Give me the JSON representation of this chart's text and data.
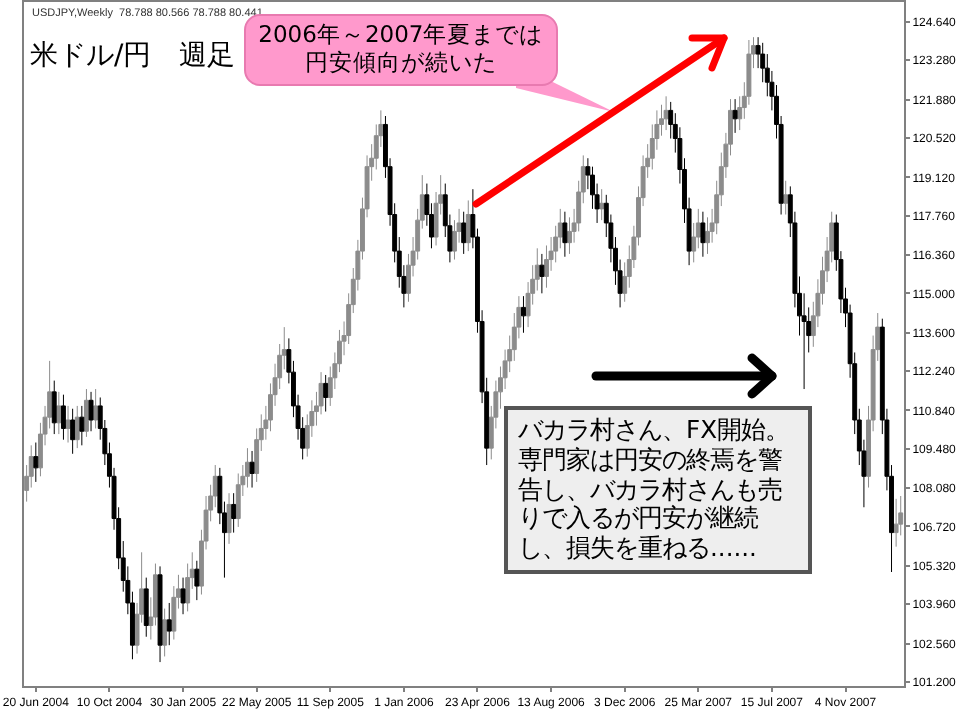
{
  "chart_data": {
    "type": "candlestick",
    "title": "米ドル/円　週足",
    "annotations": [
      "USDJPY,Weekly  78.788 80.566 78.788 80.441",
      "2006年～2007年夏までは円安傾向が続いた",
      "バカラ村さん、FX開始。専門家は円安の終焉を警告し、バカラ村さんも売りで入るが円安が継続し、損失を重ねる......"
    ],
    "colors": [
      "#8c8c8c",
      "#8c8c8c",
      "#000000",
      "#8c8c8c",
      "#8c8c8c",
      "#8c8c8c",
      "#000000",
      "#8c8c8c",
      "#000000",
      "#8c8c8c",
      "#000000",
      "#8c8c8c",
      "#000000",
      "#8c8c8c",
      "#000000",
      "#8c8c8c",
      "#000000",
      "#000000",
      "#000000",
      "#000000",
      "#000000",
      "#000000",
      "#000000",
      "#000000",
      "#8c8c8c",
      "#8c8c8c",
      "#000000",
      "#8c8c8c",
      "#8c8c8c",
      "#000000",
      "#8c8c8c",
      "#000000",
      "#8c8c8c",
      "#8c8c8c",
      "#000000",
      "#8c8c8c",
      "#8c8c8c",
      "#000000",
      "#8c8c8c",
      "#8c8c8c",
      "#8c8c8c",
      "#8c8c8c",
      "#000000",
      "#000000",
      "#8c8c8c",
      "#000000",
      "#8c8c8c",
      "#8c8c8c",
      "#8c8c8c",
      "#000000",
      "#8c8c8c",
      "#8c8c8c",
      "#8c8c8c",
      "#8c8c8c",
      "#8c8c8c",
      "#8c8c8c",
      "#8c8c8c",
      "#000000",
      "#000000",
      "#000000",
      "#000000",
      "#8c8c8c",
      "#8c8c8c",
      "#8c8c8c",
      "#8c8c8c",
      "#000000",
      "#8c8c8c",
      "#8c8c8c",
      "#8c8c8c",
      "#8c8c8c",
      "#8c8c8c",
      "#8c8c8c",
      "#8c8c8c",
      "#8c8c8c",
      "#8c8c8c",
      "#8c8c8c",
      "#8c8c8c",
      "#8c8c8c",
      "#000000",
      "#000000",
      "#000000",
      "#000000",
      "#000000",
      "#8c8c8c",
      "#8c8c8c",
      "#8c8c8c",
      "#8c8c8c",
      "#000000",
      "#000000",
      "#8c8c8c",
      "#8c8c8c",
      "#000000",
      "#000000",
      "#8c8c8c",
      "#8c8c8c",
      "#000000",
      "#8c8c8c",
      "#000000",
      "#000000",
      "#000000",
      "#000000",
      "#8c8c8c",
      "#8c8c8c",
      "#8c8c8c",
      "#8c8c8c",
      "#8c8c8c",
      "#8c8c8c",
      "#8c8c8c",
      "#000000",
      "#8c8c8c",
      "#8c8c8c",
      "#8c8c8c",
      "#000000",
      "#8c8c8c",
      "#8c8c8c",
      "#8c8c8c",
      "#8c8c8c",
      "#000000",
      "#8c8c8c",
      "#8c8c8c",
      "#8c8c8c",
      "#8c8c8c",
      "#000000",
      "#000000",
      "#000000",
      "#8c8c8c",
      "#000000",
      "#000000",
      "#000000",
      "#000000",
      "#8c8c8c",
      "#8c8c8c",
      "#8c8c8c",
      "#8c8c8c",
      "#8c8c8c",
      "#8c8c8c",
      "#8c8c8c",
      "#8c8c8c",
      "#8c8c8c",
      "#8c8c8c",
      "#000000",
      "#000000",
      "#000000",
      "#000000",
      "#000000",
      "#8c8c8c",
      "#8c8c8c",
      "#000000",
      "#8c8c8c",
      "#8c8c8c",
      "#8c8c8c",
      "#8c8c8c",
      "#8c8c8c",
      "#8c8c8c",
      "#000000",
      "#8c8c8c",
      "#8c8c8c",
      "#8c8c8c",
      "#8c8c8c",
      "#000000",
      "#000000",
      "#000000",
      "#000000",
      "#000000",
      "#000000",
      "#8c8c8c",
      "#000000",
      "#000000",
      "#000000",
      "#000000",
      "#000000",
      "#8c8c8c",
      "#8c8c8c",
      "#8c8c8c",
      "#8c8c8c",
      "#8c8c8c",
      "#000000",
      "#000000",
      "#000000",
      "#000000",
      "#000000",
      "#000000",
      "#000000",
      "#8c8c8c",
      "#8c8c8c",
      "#8c8c8c",
      "#000000",
      "#000000",
      "#000000",
      "#8c8c8c",
      "#8c8c8c"
    ],
    "grid": false,
    "xlim": [
      "2004-06-02",
      "2008-02-01"
    ],
    "xticks": [
      {
        "value": "2004-06-20",
        "label": "20 Jun 2004"
      },
      {
        "value": "2004-10-10",
        "label": "10 Oct 2004"
      },
      {
        "value": "2005-01-30",
        "label": "30 Jan 2005"
      },
      {
        "value": "2005-05-22",
        "label": "22 May 2005"
      },
      {
        "value": "2005-09-11",
        "label": "11 Sep 2005"
      },
      {
        "value": "2006-01-01",
        "label": "1 Jan 2006"
      },
      {
        "value": "2006-04-23",
        "label": "23 Apr 2006"
      },
      {
        "value": "2006-08-13",
        "label": "13 Aug 2006"
      },
      {
        "value": "2006-12-03",
        "label": "3 Dec 2006"
      },
      {
        "value": "2007-03-25",
        "label": "25 Mar 2007"
      },
      {
        "value": "2007-07-15",
        "label": "15 Jul 2007"
      },
      {
        "value": "2007-11-04",
        "label": "4 Nov 2007"
      }
    ],
    "ylim": [
      101.05,
      125.35
    ],
    "yticks": [
      {
        "value": 101.2,
        "label": "101.200"
      },
      {
        "value": 102.56,
        "label": "102.560"
      },
      {
        "value": 103.96,
        "label": "103.960"
      },
      {
        "value": 105.32,
        "label": "105.320"
      },
      {
        "value": 106.72,
        "label": "106.720"
      },
      {
        "value": 108.08,
        "label": "108.080"
      },
      {
        "value": 109.48,
        "label": "109.480"
      },
      {
        "value": 110.84,
        "label": "110.840"
      },
      {
        "value": 112.24,
        "label": "112.240"
      },
      {
        "value": 113.6,
        "label": "113.600"
      },
      {
        "value": 115.0,
        "label": "115.000"
      },
      {
        "value": 116.36,
        "label": "116.360"
      },
      {
        "value": 117.76,
        "label": "117.760"
      },
      {
        "value": 119.12,
        "label": "119.120"
      },
      {
        "value": 120.52,
        "label": "120.520"
      },
      {
        "value": 121.88,
        "label": "121.880"
      },
      {
        "value": 123.28,
        "label": "123.280"
      },
      {
        "value": 124.64,
        "label": "124.640"
      }
    ],
    "x": [
      "2004-06-06",
      "2004-06-13",
      "2004-06-20",
      "2004-06-27",
      "2004-07-04",
      "2004-07-11",
      "2004-07-18",
      "2004-07-25",
      "2004-08-01",
      "2004-08-08",
      "2004-08-15",
      "2004-08-22",
      "2004-08-29",
      "2004-09-05",
      "2004-09-12",
      "2004-09-19",
      "2004-09-26",
      "2004-10-03",
      "2004-10-10",
      "2004-10-17",
      "2004-10-24",
      "2004-10-31",
      "2004-11-07",
      "2004-11-14",
      "2004-11-21",
      "2004-11-28",
      "2004-12-05",
      "2004-12-12",
      "2004-12-19",
      "2004-12-26",
      "2005-01-02",
      "2005-01-09",
      "2005-01-16",
      "2005-01-23",
      "2005-01-30",
      "2005-02-06",
      "2005-02-13",
      "2005-02-20",
      "2005-02-27",
      "2005-03-06",
      "2005-03-13",
      "2005-03-20",
      "2005-03-27",
      "2005-04-03",
      "2005-04-10",
      "2005-04-17",
      "2005-04-24",
      "2005-05-01",
      "2005-05-08",
      "2005-05-15",
      "2005-05-22",
      "2005-05-29",
      "2005-06-05",
      "2005-06-12",
      "2005-06-19",
      "2005-06-26",
      "2005-07-03",
      "2005-07-10",
      "2005-07-17",
      "2005-07-24",
      "2005-07-31",
      "2005-08-07",
      "2005-08-14",
      "2005-08-21",
      "2005-08-28",
      "2005-09-04",
      "2005-09-11",
      "2005-09-18",
      "2005-09-25",
      "2005-10-02",
      "2005-10-09",
      "2005-10-16",
      "2005-10-23",
      "2005-10-30",
      "2005-11-06",
      "2005-11-13",
      "2005-11-20",
      "2005-11-27",
      "2005-12-04",
      "2005-12-11",
      "2005-12-18",
      "2005-12-25",
      "2006-01-01",
      "2006-01-08",
      "2006-01-15",
      "2006-01-22",
      "2006-01-29",
      "2006-02-05",
      "2006-02-12",
      "2006-02-19",
      "2006-02-26",
      "2006-03-05",
      "2006-03-12",
      "2006-03-19",
      "2006-03-26",
      "2006-04-02",
      "2006-04-09",
      "2006-04-16",
      "2006-04-23",
      "2006-04-30",
      "2006-05-07",
      "2006-05-14",
      "2006-05-21",
      "2006-05-28",
      "2006-06-04",
      "2006-06-11",
      "2006-06-18",
      "2006-06-25",
      "2006-07-02",
      "2006-07-09",
      "2006-07-16",
      "2006-07-23",
      "2006-07-30",
      "2006-08-06",
      "2006-08-13",
      "2006-08-20",
      "2006-08-27",
      "2006-09-03",
      "2006-09-10",
      "2006-09-17",
      "2006-09-24",
      "2006-10-01",
      "2006-10-08",
      "2006-10-15",
      "2006-10-22",
      "2006-10-29",
      "2006-11-05",
      "2006-11-12",
      "2006-11-19",
      "2006-11-26",
      "2006-12-03",
      "2006-12-10",
      "2006-12-17",
      "2006-12-24",
      "2006-12-31",
      "2007-01-07",
      "2007-01-14",
      "2007-01-21",
      "2007-01-28",
      "2007-02-04",
      "2007-02-11",
      "2007-02-18",
      "2007-02-25",
      "2007-03-04",
      "2007-03-11",
      "2007-03-18",
      "2007-03-25",
      "2007-04-01",
      "2007-04-08",
      "2007-04-15",
      "2007-04-22",
      "2007-04-29",
      "2007-05-06",
      "2007-05-13",
      "2007-05-20",
      "2007-05-27",
      "2007-06-03",
      "2007-06-10",
      "2007-06-17",
      "2007-06-24",
      "2007-07-01",
      "2007-07-08",
      "2007-07-15",
      "2007-07-22",
      "2007-07-29",
      "2007-08-05",
      "2007-08-12",
      "2007-08-19",
      "2007-08-26",
      "2007-09-02",
      "2007-09-09",
      "2007-09-16",
      "2007-09-23",
      "2007-09-30",
      "2007-10-07",
      "2007-10-14",
      "2007-10-21",
      "2007-10-28",
      "2007-11-04",
      "2007-11-11",
      "2007-11-18",
      "2007-11-25",
      "2007-12-02",
      "2007-12-09",
      "2007-12-16",
      "2007-12-23",
      "2007-12-30",
      "2008-01-06",
      "2008-01-13",
      "2008-01-20",
      "2008-01-27"
    ],
    "ohlc": [
      [
        108.0,
        108.9,
        107.6,
        108.5
      ],
      [
        108.5,
        109.6,
        108.1,
        109.2
      ],
      [
        109.2,
        109.7,
        108.3,
        108.8
      ],
      [
        108.8,
        110.4,
        108.5,
        110.0
      ],
      [
        110.0,
        111.0,
        109.6,
        110.6
      ],
      [
        110.6,
        112.6,
        110.2,
        111.5
      ],
      [
        111.5,
        111.9,
        110.0,
        110.4
      ],
      [
        110.4,
        111.5,
        110.0,
        111.0
      ],
      [
        111.0,
        111.4,
        109.8,
        110.2
      ],
      [
        110.2,
        111.0,
        109.7,
        110.5
      ],
      [
        110.5,
        110.9,
        109.3,
        109.8
      ],
      [
        109.8,
        111.0,
        109.5,
        110.6
      ],
      [
        110.6,
        111.0,
        109.6,
        110.1
      ],
      [
        110.1,
        111.6,
        109.9,
        111.2
      ],
      [
        111.2,
        111.5,
        110.1,
        110.5
      ],
      [
        110.5,
        111.6,
        110.2,
        111.0
      ],
      [
        111.0,
        111.3,
        109.8,
        110.2
      ],
      [
        110.2,
        110.5,
        108.9,
        109.3
      ],
      [
        109.3,
        109.7,
        108.1,
        108.5
      ],
      [
        108.5,
        108.8,
        106.6,
        107.0
      ],
      [
        107.0,
        107.4,
        105.2,
        105.6
      ],
      [
        105.6,
        106.2,
        104.4,
        104.8
      ],
      [
        104.8,
        105.3,
        103.6,
        104.0
      ],
      [
        104.0,
        104.4,
        102.0,
        102.5
      ],
      [
        102.5,
        104.0,
        102.2,
        103.6
      ],
      [
        103.6,
        105.8,
        103.3,
        104.5
      ],
      [
        104.5,
        104.9,
        102.8,
        103.2
      ],
      [
        103.2,
        104.2,
        102.7,
        103.5
      ],
      [
        103.5,
        105.4,
        103.2,
        105.0
      ],
      [
        105.0,
        105.3,
        101.9,
        102.5
      ],
      [
        102.5,
        103.8,
        102.1,
        103.4
      ],
      [
        103.4,
        104.0,
        102.5,
        103.0
      ],
      [
        103.0,
        104.6,
        102.7,
        104.2
      ],
      [
        104.2,
        105.0,
        103.8,
        104.5
      ],
      [
        104.5,
        104.9,
        103.6,
        104.0
      ],
      [
        104.0,
        105.4,
        103.7,
        104.9
      ],
      [
        104.9,
        105.8,
        104.5,
        105.2
      ],
      [
        105.2,
        105.5,
        104.1,
        104.6
      ],
      [
        104.6,
        106.6,
        104.3,
        106.2
      ],
      [
        106.2,
        107.8,
        105.9,
        107.3
      ],
      [
        107.3,
        108.2,
        106.9,
        107.8
      ],
      [
        107.8,
        108.9,
        107.4,
        108.5
      ],
      [
        108.5,
        108.8,
        106.8,
        107.2
      ],
      [
        107.2,
        107.6,
        104.9,
        106.5
      ],
      [
        106.5,
        107.9,
        106.1,
        107.5
      ],
      [
        107.5,
        107.9,
        106.5,
        107.0
      ],
      [
        107.0,
        108.6,
        106.7,
        108.2
      ],
      [
        108.2,
        108.9,
        107.8,
        108.5
      ],
      [
        108.5,
        109.5,
        108.1,
        109.0
      ],
      [
        109.0,
        109.4,
        108.1,
        108.6
      ],
      [
        108.6,
        110.2,
        108.3,
        109.8
      ],
      [
        109.8,
        110.7,
        109.4,
        110.2
      ],
      [
        110.2,
        111.0,
        109.8,
        110.5
      ],
      [
        110.5,
        111.8,
        110.1,
        111.4
      ],
      [
        111.4,
        112.5,
        111.0,
        112.0
      ],
      [
        112.0,
        113.2,
        111.6,
        112.8
      ],
      [
        112.8,
        113.8,
        112.3,
        113.0
      ],
      [
        113.0,
        113.4,
        111.8,
        112.2
      ],
      [
        112.2,
        112.6,
        110.6,
        111.0
      ],
      [
        111.0,
        111.4,
        109.8,
        110.2
      ],
      [
        110.2,
        110.6,
        109.1,
        109.5
      ],
      [
        109.5,
        110.7,
        109.2,
        110.3
      ],
      [
        110.3,
        111.2,
        109.9,
        110.8
      ],
      [
        110.8,
        111.5,
        110.3,
        111.0
      ],
      [
        111.0,
        112.2,
        110.7,
        111.8
      ],
      [
        111.8,
        112.1,
        110.8,
        111.3
      ],
      [
        111.3,
        112.4,
        111.0,
        112.0
      ],
      [
        112.0,
        112.9,
        111.6,
        112.5
      ],
      [
        112.5,
        113.7,
        112.2,
        113.3
      ],
      [
        113.3,
        114.0,
        112.8,
        113.5
      ],
      [
        113.5,
        115.0,
        113.2,
        114.6
      ],
      [
        114.6,
        115.9,
        114.3,
        115.5
      ],
      [
        115.5,
        116.9,
        115.1,
        116.5
      ],
      [
        116.5,
        118.4,
        116.2,
        118.0
      ],
      [
        118.0,
        119.9,
        117.7,
        119.5
      ],
      [
        119.5,
        120.3,
        119.0,
        119.8
      ],
      [
        119.8,
        121.0,
        119.4,
        120.6
      ],
      [
        120.6,
        121.5,
        120.2,
        121.0
      ],
      [
        121.0,
        121.3,
        119.1,
        119.5
      ],
      [
        119.5,
        119.8,
        117.4,
        117.8
      ],
      [
        117.8,
        118.2,
        116.1,
        116.5
      ],
      [
        116.5,
        117.0,
        115.2,
        115.6
      ],
      [
        115.6,
        116.0,
        114.5,
        115.0
      ],
      [
        115.0,
        116.4,
        114.7,
        116.0
      ],
      [
        116.0,
        117.0,
        115.6,
        116.5
      ],
      [
        116.5,
        118.0,
        116.2,
        117.6
      ],
      [
        117.6,
        119.2,
        117.3,
        118.5
      ],
      [
        118.5,
        118.9,
        117.4,
        117.8
      ],
      [
        117.8,
        118.2,
        116.6,
        117.0
      ],
      [
        117.0,
        118.6,
        116.7,
        118.2
      ],
      [
        118.2,
        119.2,
        117.8,
        118.5
      ],
      [
        118.5,
        118.9,
        117.0,
        117.4
      ],
      [
        117.4,
        117.8,
        116.1,
        116.5
      ],
      [
        116.5,
        117.6,
        116.2,
        117.2
      ],
      [
        117.2,
        118.0,
        116.8,
        117.5
      ],
      [
        117.5,
        117.9,
        116.4,
        116.8
      ],
      [
        116.8,
        118.3,
        116.5,
        117.8
      ],
      [
        117.8,
        118.7,
        116.6,
        117.0
      ],
      [
        117.0,
        117.3,
        113.6,
        114.0
      ],
      [
        114.0,
        114.4,
        111.1,
        111.5
      ],
      [
        111.5,
        112.0,
        108.9,
        109.5
      ],
      [
        109.5,
        111.0,
        109.1,
        110.6
      ],
      [
        110.6,
        111.9,
        110.2,
        111.5
      ],
      [
        111.5,
        112.4,
        110.9,
        112.0
      ],
      [
        112.0,
        113.0,
        111.6,
        112.6
      ],
      [
        112.6,
        113.5,
        112.2,
        113.0
      ],
      [
        113.0,
        114.3,
        112.6,
        113.8
      ],
      [
        113.8,
        114.9,
        113.4,
        114.5
      ],
      [
        114.5,
        114.9,
        113.6,
        114.2
      ],
      [
        114.2,
        115.4,
        113.8,
        115.0
      ],
      [
        115.0,
        116.0,
        114.6,
        115.5
      ],
      [
        115.5,
        116.6,
        115.1,
        116.0
      ],
      [
        116.0,
        116.4,
        115.0,
        115.6
      ],
      [
        115.6,
        116.7,
        115.2,
        116.2
      ],
      [
        116.2,
        117.0,
        115.8,
        116.5
      ],
      [
        116.5,
        117.4,
        116.1,
        117.0
      ],
      [
        117.0,
        118.0,
        116.6,
        117.5
      ],
      [
        117.5,
        117.9,
        116.3,
        116.8
      ],
      [
        116.8,
        117.7,
        116.4,
        117.2
      ],
      [
        117.2,
        118.0,
        116.8,
        117.5
      ],
      [
        117.5,
        119.0,
        117.2,
        118.6
      ],
      [
        118.6,
        119.9,
        118.2,
        119.5
      ],
      [
        119.5,
        119.8,
        118.7,
        119.2
      ],
      [
        119.2,
        119.5,
        118.0,
        118.5
      ],
      [
        118.5,
        118.9,
        117.5,
        118.0
      ],
      [
        118.0,
        118.7,
        117.6,
        118.2
      ],
      [
        118.2,
        118.5,
        117.0,
        117.5
      ],
      [
        117.5,
        117.8,
        116.1,
        116.6
      ],
      [
        116.6,
        117.0,
        115.3,
        115.8
      ],
      [
        115.8,
        116.2,
        114.5,
        115.0
      ],
      [
        115.0,
        116.1,
        114.7,
        115.6
      ],
      [
        115.6,
        116.7,
        115.2,
        116.2
      ],
      [
        116.2,
        117.4,
        115.9,
        117.0
      ],
      [
        117.0,
        118.8,
        116.7,
        118.4
      ],
      [
        118.4,
        119.9,
        118.1,
        119.5
      ],
      [
        119.5,
        120.3,
        119.1,
        119.8
      ],
      [
        119.8,
        121.0,
        119.4,
        120.5
      ],
      [
        120.5,
        121.5,
        120.1,
        121.0
      ],
      [
        121.0,
        121.7,
        120.6,
        121.2
      ],
      [
        121.2,
        122.0,
        120.8,
        121.5
      ],
      [
        121.5,
        121.8,
        120.5,
        121.0
      ],
      [
        121.0,
        121.4,
        120.0,
        120.5
      ],
      [
        120.5,
        120.9,
        118.9,
        119.4
      ],
      [
        119.4,
        119.8,
        117.5,
        118.0
      ],
      [
        118.0,
        118.4,
        116.0,
        116.5
      ],
      [
        116.5,
        117.5,
        116.1,
        117.0
      ],
      [
        117.0,
        118.0,
        116.6,
        117.5
      ],
      [
        117.5,
        117.9,
        116.3,
        116.8
      ],
      [
        116.8,
        117.7,
        116.4,
        117.2
      ],
      [
        117.2,
        118.0,
        116.8,
        117.5
      ],
      [
        117.5,
        119.0,
        117.1,
        118.5
      ],
      [
        118.5,
        120.0,
        118.1,
        119.5
      ],
      [
        119.5,
        120.7,
        119.1,
        120.3
      ],
      [
        120.3,
        121.9,
        119.9,
        121.5
      ],
      [
        121.5,
        121.9,
        120.7,
        121.2
      ],
      [
        121.2,
        122.0,
        120.8,
        121.6
      ],
      [
        121.6,
        122.5,
        121.2,
        122.0
      ],
      [
        122.0,
        124.0,
        121.7,
        123.5
      ],
      [
        123.5,
        124.1,
        123.0,
        123.8
      ],
      [
        123.8,
        124.1,
        123.0,
        123.5
      ],
      [
        123.5,
        123.9,
        122.5,
        123.0
      ],
      [
        123.0,
        123.5,
        122.0,
        122.5
      ],
      [
        122.5,
        122.9,
        121.5,
        122.0
      ],
      [
        122.0,
        122.4,
        120.5,
        121.0
      ],
      [
        121.0,
        121.3,
        117.8,
        118.2
      ],
      [
        118.2,
        119.0,
        117.8,
        118.5
      ],
      [
        118.5,
        118.8,
        117.0,
        117.5
      ],
      [
        117.5,
        117.9,
        114.5,
        115.0
      ],
      [
        115.0,
        115.6,
        113.5,
        114.2
      ],
      [
        114.2,
        115.0,
        111.6,
        114.0
      ],
      [
        114.0,
        114.5,
        112.9,
        113.5
      ],
      [
        113.5,
        114.7,
        113.1,
        114.2
      ],
      [
        114.2,
        115.5,
        113.8,
        115.0
      ],
      [
        115.0,
        116.3,
        114.6,
        115.8
      ],
      [
        115.8,
        117.0,
        115.4,
        116.5
      ],
      [
        116.5,
        117.9,
        116.1,
        117.5
      ],
      [
        117.5,
        117.8,
        115.8,
        116.2
      ],
      [
        116.2,
        116.5,
        114.3,
        114.8
      ],
      [
        114.8,
        115.2,
        113.8,
        114.3
      ],
      [
        114.3,
        114.6,
        112.0,
        112.5
      ],
      [
        112.5,
        112.9,
        110.0,
        110.5
      ],
      [
        110.5,
        110.9,
        108.9,
        109.4
      ],
      [
        109.4,
        109.8,
        107.4,
        108.5
      ],
      [
        108.5,
        111.0,
        108.1,
        110.5
      ],
      [
        110.5,
        113.5,
        110.1,
        113.0
      ],
      [
        113.0,
        114.3,
        112.6,
        113.8
      ],
      [
        113.8,
        114.1,
        110.0,
        110.5
      ],
      [
        110.5,
        110.9,
        108.0,
        108.5
      ],
      [
        108.5,
        108.9,
        105.1,
        106.5
      ],
      [
        106.5,
        107.7,
        106.0,
        106.8
      ],
      [
        106.8,
        107.8,
        106.4,
        107.2
      ]
    ]
  }
}
